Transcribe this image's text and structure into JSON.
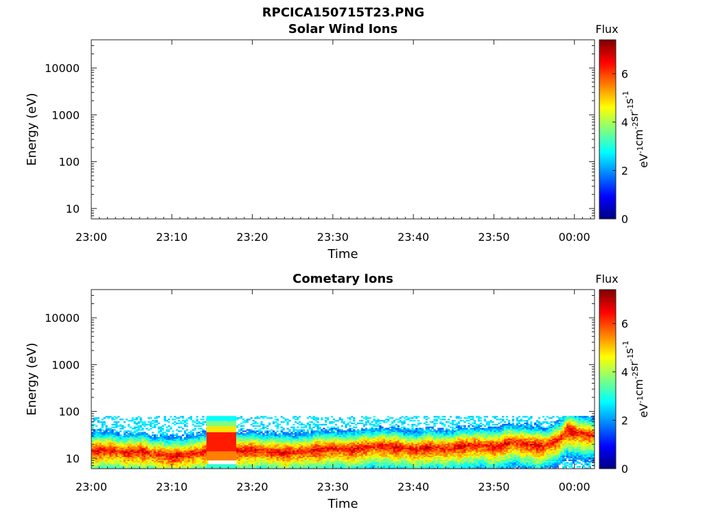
{
  "figure_title": "RPCICA150715T23.PNG",
  "colorbar": {
    "title": "Flux",
    "unit_base": [
      "eV",
      "cm",
      "sr",
      "s"
    ],
    "unit_exp": [
      "-1",
      "-2",
      "-1",
      "-1"
    ],
    "ticks": [
      "0",
      "2",
      "4",
      "6"
    ],
    "range": [
      0,
      7.4
    ],
    "colormap": [
      "#00007f",
      "#0000ff",
      "#0080ff",
      "#00ffff",
      "#7fff7f",
      "#ffff00",
      "#ff8000",
      "#ff0000",
      "#7f0000"
    ]
  },
  "chart_data": [
    {
      "type": "heatmap",
      "title": "Solar Wind Ions",
      "xlabel": "Time",
      "ylabel": "Energy (eV)",
      "x_ticks": [
        "23:00",
        "23:10",
        "23:20",
        "23:30",
        "23:40",
        "23:50",
        "00:00"
      ],
      "xlim_minutes": [
        0,
        62.5
      ],
      "y_ticks": [
        "10",
        "100",
        "1000",
        "10000"
      ],
      "y_scale": "log",
      "ylim": [
        6,
        40000
      ],
      "data": "empty"
    },
    {
      "type": "heatmap",
      "title": "Cometary Ions",
      "xlabel": "Time",
      "ylabel": "Energy (eV)",
      "x_ticks": [
        "23:00",
        "23:10",
        "23:20",
        "23:30",
        "23:40",
        "23:50",
        "00:00"
      ],
      "xlim_minutes": [
        0,
        62.5
      ],
      "y_ticks": [
        "10",
        "100",
        "1000",
        "10000"
      ],
      "y_scale": "log",
      "ylim": [
        6,
        40000
      ],
      "flux_profile": {
        "minutes": [
          0,
          2,
          4,
          6,
          8,
          10,
          12,
          14.3,
          18,
          20,
          22,
          24,
          26,
          28,
          30,
          32,
          34,
          36,
          38,
          39,
          40,
          42,
          44,
          46,
          48,
          50,
          52,
          54,
          56,
          58,
          59,
          60,
          62.5
        ],
        "peak_energy_ev": [
          14,
          15,
          13,
          14,
          12,
          11,
          12,
          14,
          14,
          15,
          14,
          13,
          14,
          15,
          16,
          15,
          17,
          18,
          17,
          16,
          15,
          17,
          16,
          18,
          19,
          17,
          22,
          20,
          18,
          25,
          40,
          35,
          30
        ]
      },
      "data_gap_minutes": [
        14.3,
        18
      ],
      "max_energy_ev": 80
    }
  ]
}
